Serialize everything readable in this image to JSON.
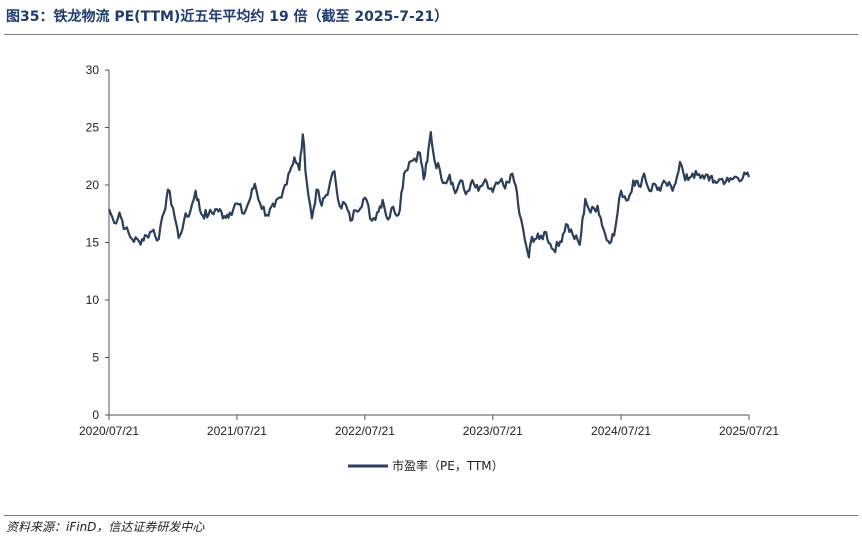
{
  "header": {
    "title": "图35：铁龙物流 PE(TTM)近五年平均约 19 倍（截至 2025-7-21）"
  },
  "footer": {
    "source": "资料来源：iFinD，信达证券研发中心"
  },
  "colors": {
    "series": "#2a3f5c",
    "axis": "#555555",
    "title": "#1f3c6e"
  },
  "chart_data": {
    "type": "line",
    "title": "",
    "xlabel": "",
    "ylabel": "",
    "ylim": [
      0,
      30
    ],
    "yticks": [
      0,
      5,
      10,
      15,
      20,
      25,
      30
    ],
    "xticks": [
      "2020/07/21",
      "2021/07/21",
      "2022/07/21",
      "2023/07/21",
      "2024/07/21",
      "2025/07/21"
    ],
    "grid": false,
    "legend_position": "bottom-center",
    "series": [
      {
        "name": "市盈率（PE，TTM）",
        "points": [
          [
            "2020/07/21",
            17.9
          ],
          [
            "2020/08/05",
            16.7
          ],
          [
            "2020/08/20",
            17.6
          ],
          [
            "2020/09/05",
            16.2
          ],
          [
            "2020/09/25",
            15.3
          ],
          [
            "2020/10/15",
            15.1
          ],
          [
            "2020/11/05",
            15.6
          ],
          [
            "2020/11/25",
            16.1
          ],
          [
            "2020/12/10",
            15.3
          ],
          [
            "2020/12/25",
            17.6
          ],
          [
            "2021/01/05",
            19.6
          ],
          [
            "2021/01/20",
            18.0
          ],
          [
            "2021/02/05",
            15.4
          ],
          [
            "2021/02/20",
            16.9
          ],
          [
            "2021/03/10",
            17.7
          ],
          [
            "2021/03/25",
            19.5
          ],
          [
            "2021/04/10",
            17.5
          ],
          [
            "2021/05/01",
            17.4
          ],
          [
            "2021/05/25",
            17.9
          ],
          [
            "2021/06/15",
            17.3
          ],
          [
            "2021/07/01",
            17.6
          ],
          [
            "2021/07/21",
            18.4
          ],
          [
            "2021/08/10",
            17.5
          ],
          [
            "2021/08/25",
            18.6
          ],
          [
            "2021/09/10",
            20.1
          ],
          [
            "2021/09/25",
            18.4
          ],
          [
            "2021/10/15",
            17.4
          ],
          [
            "2021/11/05",
            18.1
          ],
          [
            "2021/11/25",
            18.9
          ],
          [
            "2021/12/15",
            21.0
          ],
          [
            "2022/01/01",
            22.4
          ],
          [
            "2022/01/15",
            21.3
          ],
          [
            "2022/01/25",
            24.4
          ],
          [
            "2022/02/05",
            20.3
          ],
          [
            "2022/02/20",
            17.1
          ],
          [
            "2022/03/05",
            19.6
          ],
          [
            "2022/03/20",
            18.2
          ],
          [
            "2022/04/10",
            19.8
          ],
          [
            "2022/04/25",
            21.2
          ],
          [
            "2022/05/10",
            18.2
          ],
          [
            "2022/05/25",
            18.4
          ],
          [
            "2022/06/10",
            16.9
          ],
          [
            "2022/06/25",
            17.8
          ],
          [
            "2022/07/21",
            18.9
          ],
          [
            "2022/08/10",
            16.9
          ],
          [
            "2022/08/25",
            17.6
          ],
          [
            "2022/09/10",
            18.7
          ],
          [
            "2022/09/25",
            17.0
          ],
          [
            "2022/10/10",
            18.1
          ],
          [
            "2022/10/25",
            17.4
          ],
          [
            "2022/11/10",
            21.0
          ],
          [
            "2022/11/25",
            22.0
          ],
          [
            "2022/12/10",
            22.3
          ],
          [
            "2022/12/25",
            22.8
          ],
          [
            "2023/01/05",
            20.5
          ],
          [
            "2023/01/15",
            22.0
          ],
          [
            "2023/01/25",
            24.6
          ],
          [
            "2023/02/05",
            22.1
          ],
          [
            "2023/02/20",
            21.3
          ],
          [
            "2023/03/05",
            20.2
          ],
          [
            "2023/03/20",
            20.9
          ],
          [
            "2023/04/05",
            19.3
          ],
          [
            "2023/04/20",
            20.4
          ],
          [
            "2023/05/05",
            19.2
          ],
          [
            "2023/05/20",
            20.2
          ],
          [
            "2023/06/10",
            19.5
          ],
          [
            "2023/06/25",
            20.2
          ],
          [
            "2023/07/21",
            19.4
          ],
          [
            "2023/08/10",
            20.3
          ],
          [
            "2023/08/25",
            19.7
          ],
          [
            "2023/09/10",
            20.9
          ],
          [
            "2023/09/25",
            19.9
          ],
          [
            "2023/10/05",
            17.5
          ],
          [
            "2023/10/20",
            15.3
          ],
          [
            "2023/11/01",
            13.7
          ],
          [
            "2023/11/10",
            15.5
          ],
          [
            "2023/12/01",
            15.3
          ],
          [
            "2023/12/20",
            15.9
          ],
          [
            "2024/01/05",
            14.5
          ],
          [
            "2024/01/25",
            14.7
          ],
          [
            "2024/02/15",
            16.6
          ],
          [
            "2024/03/05",
            15.7
          ],
          [
            "2024/03/25",
            14.8
          ],
          [
            "2024/04/10",
            18.8
          ],
          [
            "2024/04/25",
            17.6
          ],
          [
            "2024/05/15",
            18.2
          ],
          [
            "2024/06/10",
            15.2
          ],
          [
            "2024/07/01",
            15.6
          ],
          [
            "2024/07/21",
            19.5
          ],
          [
            "2024/08/10",
            18.7
          ],
          [
            "2024/08/25",
            20.4
          ],
          [
            "2024/09/10",
            19.9
          ],
          [
            "2024/09/25",
            21.0
          ],
          [
            "2024/10/10",
            19.5
          ],
          [
            "2024/10/25",
            20.1
          ],
          [
            "2024/11/10",
            19.5
          ],
          [
            "2024/11/25",
            20.2
          ],
          [
            "2024/12/15",
            19.5
          ],
          [
            "2025/01/05",
            22.0
          ],
          [
            "2025/01/20",
            20.4
          ],
          [
            "2025/02/10",
            21.0
          ],
          [
            "2025/03/05",
            20.6
          ],
          [
            "2025/03/25",
            20.9
          ],
          [
            "2025/04/10",
            20.2
          ],
          [
            "2025/05/01",
            20.5
          ],
          [
            "2025/05/25",
            20.3
          ],
          [
            "2025/06/15",
            20.7
          ],
          [
            "2025/07/21",
            20.7
          ]
        ]
      }
    ]
  }
}
